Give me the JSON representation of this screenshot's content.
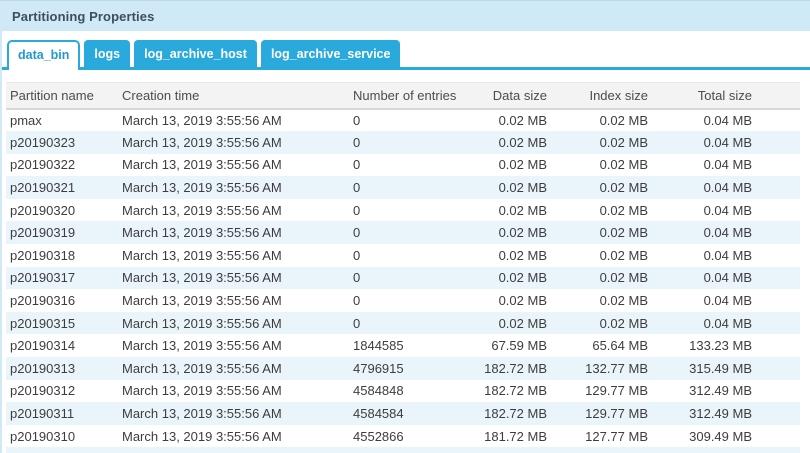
{
  "panel": {
    "title": "Partitioning Properties"
  },
  "tabs": [
    {
      "label": "data_bin",
      "active": true
    },
    {
      "label": "logs",
      "active": false
    },
    {
      "label": "log_archive_host",
      "active": false
    },
    {
      "label": "log_archive_service",
      "active": false
    }
  ],
  "table": {
    "columns": [
      "Partition name",
      "Creation time",
      "Number of entries",
      "Data size",
      "Index size",
      "Total size"
    ],
    "rows": [
      [
        "pmax",
        "March 13, 2019 3:55:56 AM",
        "0",
        "0.02 MB",
        "0.02 MB",
        "0.04 MB"
      ],
      [
        "p20190323",
        "March 13, 2019 3:55:56 AM",
        "0",
        "0.02 MB",
        "0.02 MB",
        "0.04 MB"
      ],
      [
        "p20190322",
        "March 13, 2019 3:55:56 AM",
        "0",
        "0.02 MB",
        "0.02 MB",
        "0.04 MB"
      ],
      [
        "p20190321",
        "March 13, 2019 3:55:56 AM",
        "0",
        "0.02 MB",
        "0.02 MB",
        "0.04 MB"
      ],
      [
        "p20190320",
        "March 13, 2019 3:55:56 AM",
        "0",
        "0.02 MB",
        "0.02 MB",
        "0.04 MB"
      ],
      [
        "p20190319",
        "March 13, 2019 3:55:56 AM",
        "0",
        "0.02 MB",
        "0.02 MB",
        "0.04 MB"
      ],
      [
        "p20190318",
        "March 13, 2019 3:55:56 AM",
        "0",
        "0.02 MB",
        "0.02 MB",
        "0.04 MB"
      ],
      [
        "p20190317",
        "March 13, 2019 3:55:56 AM",
        "0",
        "0.02 MB",
        "0.02 MB",
        "0.04 MB"
      ],
      [
        "p20190316",
        "March 13, 2019 3:55:56 AM",
        "0",
        "0.02 MB",
        "0.02 MB",
        "0.04 MB"
      ],
      [
        "p20190315",
        "March 13, 2019 3:55:56 AM",
        "0",
        "0.02 MB",
        "0.02 MB",
        "0.04 MB"
      ],
      [
        "p20190314",
        "March 13, 2019 3:55:56 AM",
        "1844585",
        "67.59 MB",
        "65.64 MB",
        "133.23 MB"
      ],
      [
        "p20190313",
        "March 13, 2019 3:55:56 AM",
        "4796915",
        "182.72 MB",
        "132.77 MB",
        "315.49 MB"
      ],
      [
        "p20190312",
        "March 13, 2019 3:55:56 AM",
        "4584848",
        "182.72 MB",
        "129.77 MB",
        "312.49 MB"
      ],
      [
        "p20190311",
        "March 13, 2019 3:55:56 AM",
        "4584584",
        "182.72 MB",
        "129.77 MB",
        "312.49 MB"
      ],
      [
        "p20190310",
        "March 13, 2019 3:55:56 AM",
        "4552866",
        "181.72 MB",
        "127.77 MB",
        "309.49 MB"
      ]
    ]
  },
  "colors": {
    "accent_cyan": "#2aa9dc",
    "header_bar_bg": "#cfe9f6",
    "header_bar_top_line": "#b9d8e8",
    "title_text": "#3e4e5a",
    "active_tab_text": "#2299cf",
    "table_header_bg": "#f3f3f3",
    "row_alt_bg": "#eaf5fb",
    "body_text": "#3d3d3d"
  }
}
